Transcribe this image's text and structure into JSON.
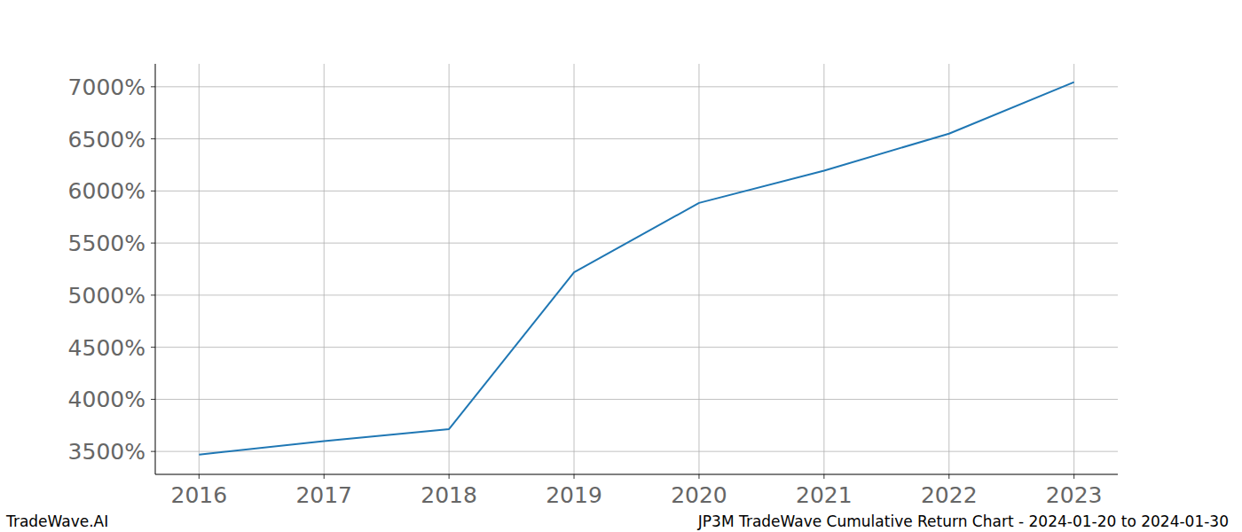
{
  "chart_data": {
    "type": "line",
    "title": "JP3M TradeWave Cumulative Return Chart - 2024-01-20 to 2024-01-30",
    "source": "TradeWave.AI",
    "x": [
      2016,
      2017,
      2018,
      2019,
      2020,
      2021,
      2022,
      2023
    ],
    "values": [
      3470,
      3600,
      3715,
      5220,
      5885,
      6195,
      6550,
      7045
    ],
    "color": "#1f77b4",
    "xlim": [
      2015.65,
      2023.35
    ],
    "xticks": [
      2016,
      2017,
      2018,
      2019,
      2020,
      2021,
      2022,
      2023
    ],
    "ylim": [
      3280,
      7220
    ],
    "yticks": [
      {
        "value": 3500,
        "label": "3500%"
      },
      {
        "value": 4000,
        "label": "4000%"
      },
      {
        "value": 4500,
        "label": "4500%"
      },
      {
        "value": 5000,
        "label": "5000%"
      },
      {
        "value": 5500,
        "label": "5500%"
      },
      {
        "value": 6000,
        "label": "6000%"
      },
      {
        "value": 6500,
        "label": "6500%"
      },
      {
        "value": 7000,
        "label": "7000%"
      }
    ],
    "grid": true
  }
}
